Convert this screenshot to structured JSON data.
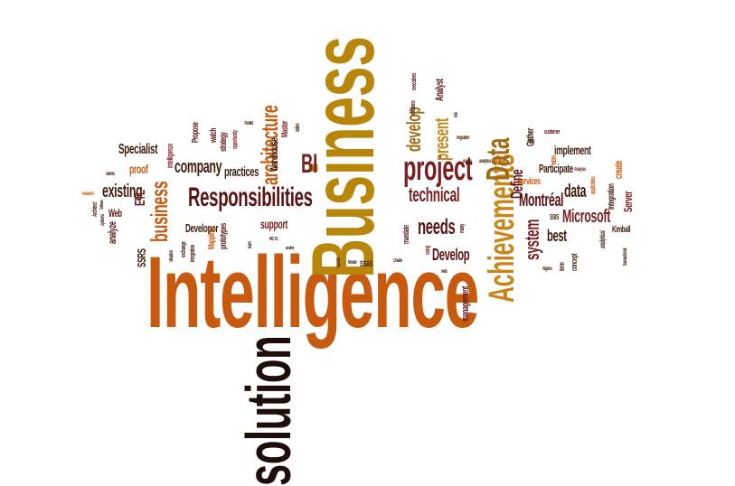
{
  "palette": {
    "dark_red": "#5a1212",
    "brown": "#b36a18",
    "dark_brown": "#3e1c0c",
    "orange": "#c85a10",
    "maroon": "#7a1f1f",
    "near_black": "#1e0d08"
  },
  "words": {
    "intelligence": "Intelligence",
    "business_big": "Business",
    "solution": "solution",
    "achievements": "Achievements",
    "data_big": "Data",
    "responsibilities": "Responsibilities",
    "project": "project",
    "business_mid": "business",
    "architecture": "architecture",
    "bi": "BI",
    "company": "company",
    "existing": "existing",
    "technical": "technical",
    "present": "present",
    "develop_v": "develop",
    "define": "Define",
    "montreal": "Montréal",
    "microsoft": "Microsoft",
    "system": "system",
    "needs": "needs",
    "develop_h": "Develop",
    "data_small": "data",
    "best": "best",
    "specialist": "Specialist",
    "proof": "proof",
    "practices": "practices",
    "developer": "Developer",
    "support": "support",
    "etl": "ETL",
    "ssrs": "SSRS",
    "web": "Web",
    "analyze": "analyze",
    "warehouse": "Warehouse",
    "master": "Master",
    "participate": "Participate",
    "implement": "implement",
    "gather": "Gather",
    "services": "Services",
    "server": "Server",
    "create": "create",
    "integration": "Integration",
    "kimball": "Kimball",
    "analyst": "Analyst",
    "ssas": "SSAS",
    "ssis": "SSIS",
    "management": "management",
    "mapping": "Mapping",
    "prototypes": "prototypes",
    "watch": "watch",
    "propose": "Propose",
    "strategy": "strategy",
    "opportunity": "opportunity",
    "mandate": "mandate",
    "solutions": "solutions",
    "migration": "migration",
    "executives": "executives",
    "customer": "customer",
    "mdm": "MDM",
    "concept": "concept",
    "term": "term",
    "analytical": "analytical",
    "application": "application",
    "transactional": "transactional",
    "architect": "Architect",
    "systems": "systems",
    "research": "research",
    "clients": "clients",
    "software": "Software",
    "sales": "sales",
    "mcts": "MCTS",
    "model": "Model",
    "create_small": "Create",
    "analysis": "Analysis",
    "algiers": "Algiers",
    "many": "many",
    "using": "using",
    "another": "another",
    "team": "team",
    "exchange": "exchange",
    "integration_small": "integration",
    "situation": "situation",
    "toolkit": "Toolkit",
    "intelligence_small": "intelligence",
    "reports": "reports",
    "issues": "issues",
    "analytics": "analytics",
    "web_small": "web",
    "role": "role",
    "study": "study"
  }
}
